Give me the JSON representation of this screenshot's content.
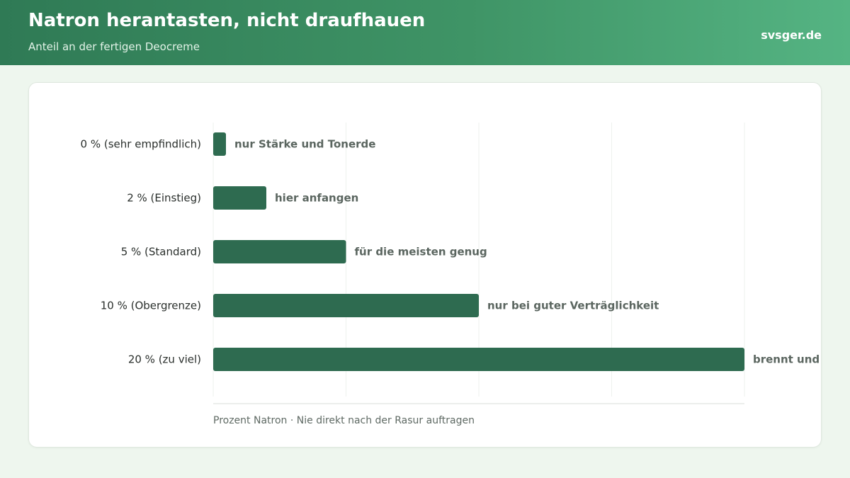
{
  "header": {
    "title": "Natron herantasten, nicht draufhauen",
    "subtitle": "Anteil an der fertigen Deocreme",
    "brand": "svsger.de"
  },
  "colors": {
    "header_start": "#2f7a55",
    "header_end": "#55b483",
    "bar": "#2e6b50",
    "background": "#eef6ee"
  },
  "chart_data": {
    "type": "bar",
    "orientation": "horizontal",
    "categories": [
      "0 % (sehr empfindlich)",
      "2 % (Einstieg)",
      "5 % (Standard)",
      "10 % (Obergrenze)",
      "20 % (zu viel)"
    ],
    "values": [
      0,
      2,
      5,
      10,
      20
    ],
    "data_labels": [
      "nur Stärke und Tonerde",
      "hier anfangen",
      "für die meisten genug",
      "nur bei guter Verträglichkeit",
      "brennt und rötet h"
    ],
    "xlabel": "Prozent Natron · Nie direkt nach der Rasur auftragen",
    "xlim": [
      0,
      20
    ],
    "grid": true,
    "legend": "none"
  }
}
